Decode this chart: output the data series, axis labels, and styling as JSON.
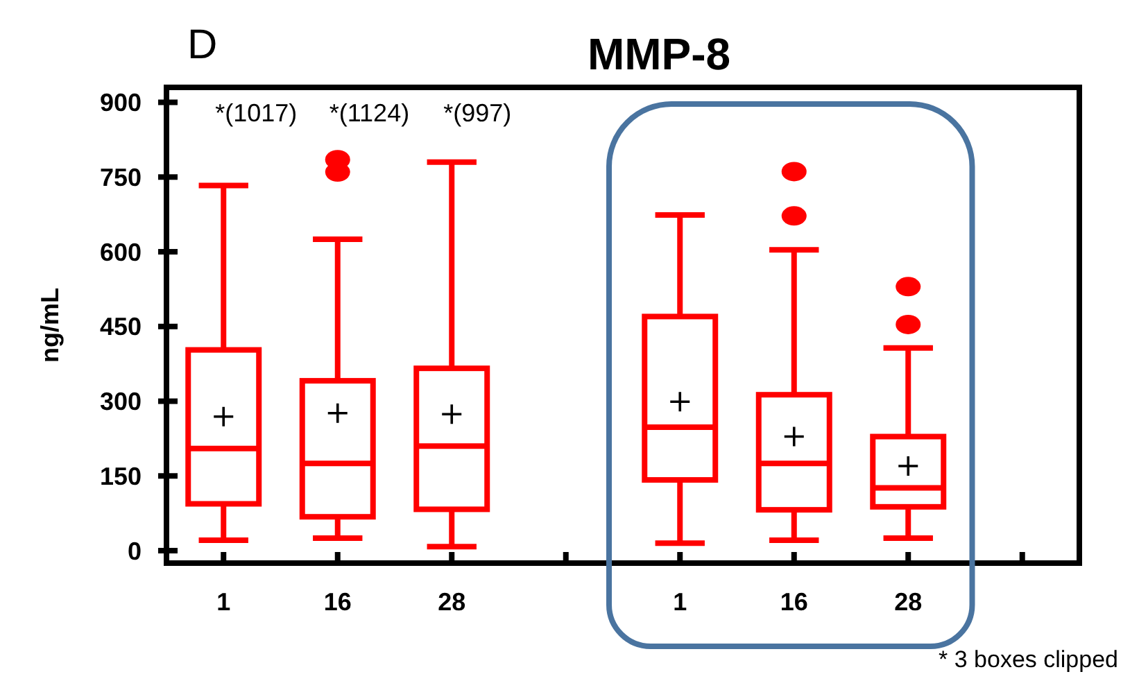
{
  "chart_data": {
    "type": "box",
    "title": "MMP-8",
    "ylabel": "ng/mL",
    "categories": [
      "1",
      "16",
      "28",
      null,
      "1",
      "16",
      "28",
      null
    ],
    "color": "#ff0000",
    "marker": "cross",
    "boxes": [
      {
        "low": 21,
        "q1": 94,
        "median": 205,
        "q3": 403,
        "high": 733,
        "mean": 269
      },
      {
        "low": 25,
        "q1": 68,
        "median": 175,
        "q3": 341,
        "high": 625,
        "mean": 276,
        "outliers": [
          760,
          785
        ]
      },
      {
        "low": 8,
        "q1": 83,
        "median": 210,
        "q3": 366,
        "high": 780,
        "mean": 274
      },
      null,
      {
        "low": 15,
        "q1": 142,
        "median": 248,
        "q3": 470,
        "high": 674,
        "mean": 299
      },
      {
        "low": 21,
        "q1": 82,
        "median": 175,
        "q3": 313,
        "high": 604,
        "mean": 229,
        "outliers": [
          672,
          761
        ]
      },
      {
        "low": 25,
        "q1": 88,
        "median": 126,
        "q3": 229,
        "high": 407,
        "mean": 170,
        "outliers": [
          454,
          530
        ]
      },
      null
    ],
    "ylim": [
      -25,
      930
    ],
    "yticks": [
      0,
      150,
      300,
      450,
      600,
      750,
      900
    ],
    "grid": false,
    "annotations": [
      "D",
      "*(1017)",
      "*(1124)",
      "*(997)",
      "* 3 boxes clipped"
    ]
  }
}
